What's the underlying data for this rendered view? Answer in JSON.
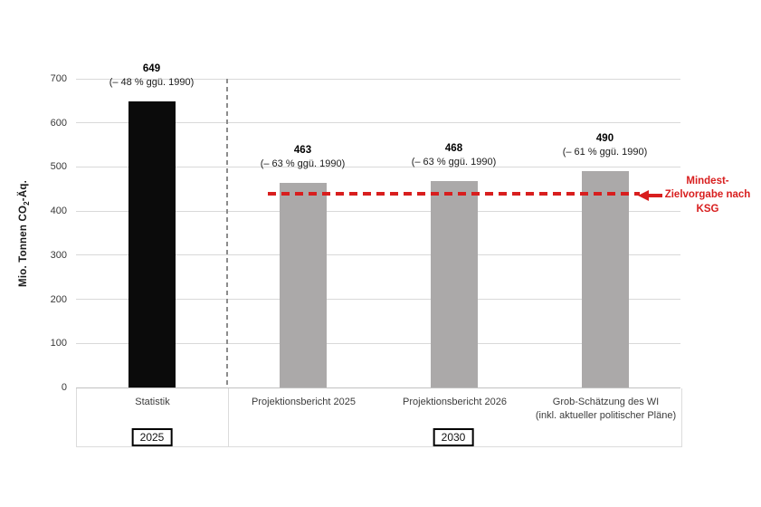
{
  "chart_data": {
    "type": "bar",
    "title": "",
    "ylabel": "Mio. Tonnen CO2-Äq.",
    "ylabel_parts": {
      "pre": "Mio. Tonnen CO",
      "sub": "2",
      "post": "-Äq."
    },
    "ylim": [
      0,
      700
    ],
    "yticks": [
      700,
      600,
      500,
      400,
      300,
      200,
      100,
      0
    ],
    "grid": true,
    "legend": null,
    "bars": [
      {
        "category": "Statistik",
        "category_lines": [
          "Statistik"
        ],
        "value": 649,
        "label": "649",
        "sublabel": "(– 48 % ggü. 1990)",
        "color": "#0b0b0b",
        "group": "2025"
      },
      {
        "category": "Projektionsbericht 2025",
        "category_lines": [
          "Projektionsbericht 2025"
        ],
        "value": 463,
        "label": "463",
        "sublabel": "(– 63 % ggü. 1990)",
        "color": "#aba9a9",
        "group": "2030"
      },
      {
        "category": "Projektionsbericht 2026",
        "category_lines": [
          "Projektionsbericht 2026"
        ],
        "value": 468,
        "label": "468",
        "sublabel": "(– 63 % ggü. 1990)",
        "color": "#aba9a9",
        "group": "2030"
      },
      {
        "category": "Grob-Schätzung des WI (inkl. aktueller politischer Pläne)",
        "category_lines": [
          "Grob-Schätzung des WI",
          "(inkl. aktueller politischer Pläne)"
        ],
        "value": 490,
        "label": "490",
        "sublabel": "(– 61 % ggü. 1990)",
        "color": "#aba9a9",
        "group": "2030"
      }
    ],
    "group_labels": [
      "2025",
      "2030"
    ],
    "separator_after_category": "Statistik",
    "reference_line": {
      "value": 440,
      "color": "#d81e1e",
      "label": "Mindest-Zielvorgabe nach KSG",
      "label_lines": [
        "Mindest-",
        "Zielvorgabe nach",
        "KSG"
      ]
    }
  },
  "colors": {
    "bar_statistik": "#0b0b0b",
    "bar_projection": "#aba9a9",
    "gridline": "#d9d9d9",
    "axis_line": "#c1c1c1",
    "target_red": "#d81e1e",
    "background": "#ffffff"
  }
}
